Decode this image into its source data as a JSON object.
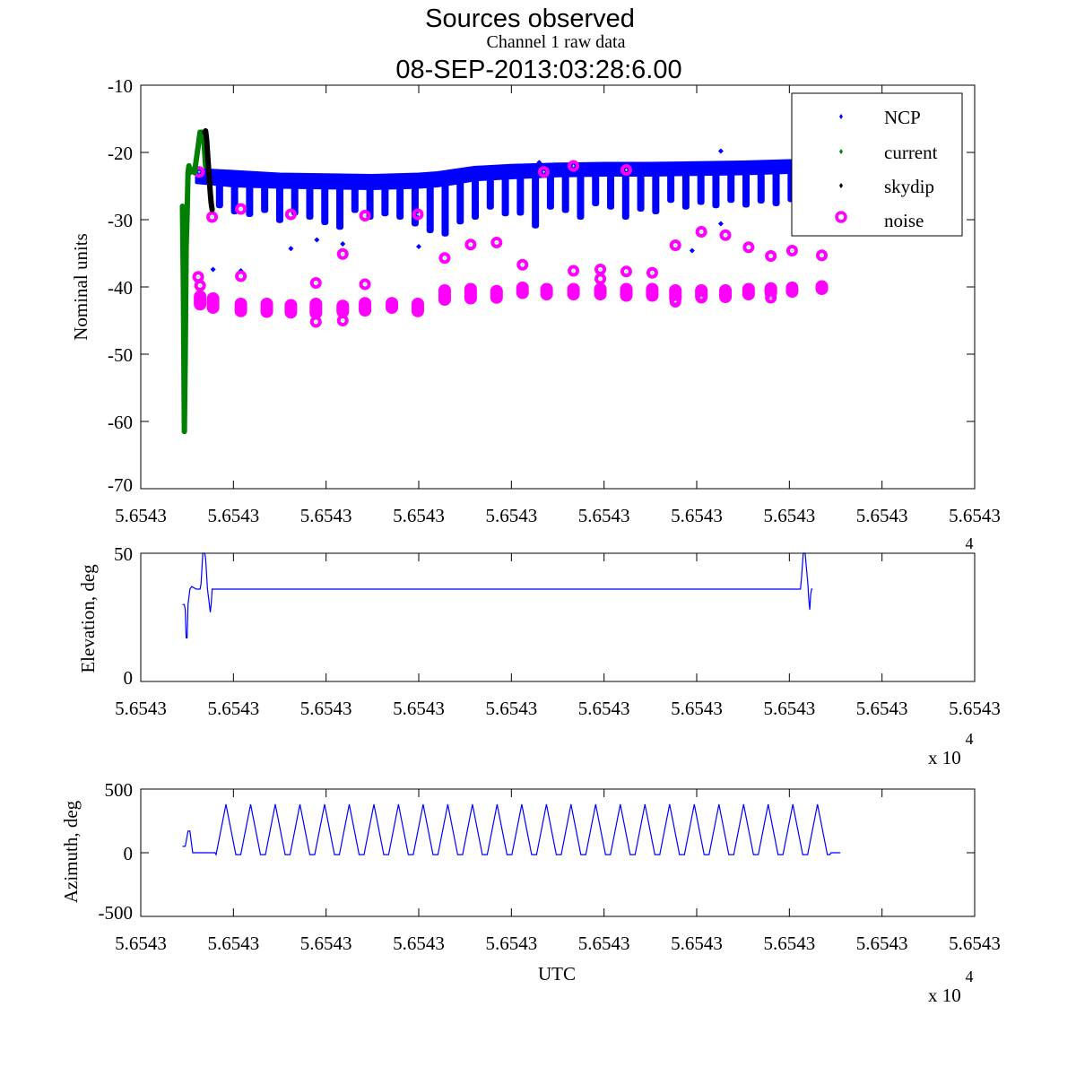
{
  "figure": {
    "title_line1": "Sources observed",
    "title_line2": "08-SEP-2013:03:28:6.00",
    "overlay_title": "Channel 1 raw data"
  },
  "chart_data": [
    {
      "type": "scatter",
      "name": "raw-data",
      "title": "Channel 1 raw data",
      "xlabel": "",
      "ylabel": "Nominal units",
      "ylim": [
        -70,
        -10
      ],
      "xlim": [
        0,
        9
      ],
      "xticks": [
        0,
        1,
        2,
        3,
        4,
        5,
        6,
        7,
        8,
        9
      ],
      "xtick_labels": [
        "5.6543",
        "5.6543",
        "5.6543",
        "5.6543",
        "5.6543",
        "5.6543",
        "5.6543",
        "5.6543",
        "5.6543",
        "5.6543"
      ],
      "yticks": [
        -10,
        -20,
        -30,
        -40,
        -50,
        -60,
        -70
      ],
      "ytick_labels": [
        "-10",
        "-20",
        "-30",
        "-40",
        "-50",
        "-60",
        "-70"
      ],
      "legend": {
        "position": "top-right",
        "entries": [
          {
            "label": "NCP",
            "color": "#0000ff",
            "marker": "dot"
          },
          {
            "label": "current",
            "color": "#008000",
            "marker": "dot"
          },
          {
            "label": "skydip",
            "color": "#000000",
            "marker": "dot"
          },
          {
            "label": "noise",
            "color": "#ff00ff",
            "marker": "circle"
          }
        ]
      },
      "series": [
        {
          "name": "current",
          "color": "#008000",
          "x": [
            0.45,
            0.46,
            0.47,
            0.48,
            0.49,
            0.5,
            0.51,
            0.52,
            0.53,
            0.56,
            0.58,
            0.6,
            0.62,
            0.64,
            0.66,
            0.68,
            0.7
          ],
          "y": [
            -28,
            -40,
            -61.5,
            -50,
            -34,
            -29,
            -23,
            -22,
            -23,
            -22.5,
            -23,
            -21,
            -19,
            -17,
            -17,
            -18,
            -22
          ]
        },
        {
          "name": "skydip",
          "color": "#000000",
          "x": [
            0.69,
            0.7,
            0.71,
            0.72,
            0.73,
            0.74,
            0.75,
            0.76,
            0.77
          ],
          "y": [
            -17,
            -16.8,
            -18,
            -20,
            -22,
            -24,
            -26,
            -27.5,
            -28.5
          ]
        },
        {
          "name": "NCP",
          "color": "#0000ff",
          "band": {
            "x": [
              0.6,
              1.0,
              1.5,
              2.0,
              2.5,
              3.0,
              3.2,
              3.4,
              3.6,
              4.0,
              4.5,
              5.0,
              5.5,
              6.0,
              6.5,
              7.0,
              7.2
            ],
            "y_top": [
              -22.5,
              -22.8,
              -23.2,
              -23.3,
              -23.4,
              -23.2,
              -23.0,
              -22.6,
              -22.2,
              -21.9,
              -21.7,
              -21.6,
              -21.6,
              -21.5,
              -21.4,
              -21.2,
              -21.2
            ],
            "y_bottom": [
              -24.5,
              -25,
              -25.2,
              -25.3,
              -25.4,
              -25.2,
              -25,
              -24.6,
              -24.1,
              -23.8,
              -23.5,
              -23.4,
              -23.4,
              -23.3,
              -23.2,
              -23,
              -23
            ]
          },
          "dip_spacing": 0.17,
          "dip_depths": [
            -28.3,
            -29.2,
            -29.6,
            -29,
            -30.5,
            -29.4,
            -30,
            -30.8,
            -31.5,
            -29,
            -30,
            -29.5,
            -30,
            -31,
            -32,
            -32.5,
            -30.7,
            -30,
            -28.5,
            -29.5,
            -29.4,
            -31.3,
            -28.5,
            -29,
            -30,
            -28,
            -28.5,
            -30,
            -28.8,
            -29.2,
            -27.5,
            -28.5,
            -27.8,
            -28.3,
            -27.5,
            -28.2,
            -27.6,
            -28,
            -27.4,
            -28.3,
            -27.5,
            -27.8,
            -27.6,
            -28,
            -27.6,
            -27.8,
            -27.5,
            -28.2,
            -27.7,
            -28.4
          ],
          "outliers": [
            {
              "x": 0.78,
              "y": -37.4
            },
            {
              "x": 1.08,
              "y": -37.6
            },
            {
              "x": 1.62,
              "y": -34.3
            },
            {
              "x": 1.9,
              "y": -33
            },
            {
              "x": 2.18,
              "y": -33.6
            },
            {
              "x": 3.0,
              "y": -34
            },
            {
              "x": 4.3,
              "y": -21.5
            },
            {
              "x": 5.95,
              "y": -34.6
            },
            {
              "x": 6.26,
              "y": -30.6
            },
            {
              "x": 7.12,
              "y": -26.6
            },
            {
              "x": 6.26,
              "y": -19.8
            }
          ]
        },
        {
          "name": "noise",
          "color": "#ff00ff",
          "points": [
            {
              "x": 0.63,
              "y": -22.9
            },
            {
              "x": 0.77,
              "y": -29.6
            },
            {
              "x": 1.08,
              "y": -28.4
            },
            {
              "x": 1.62,
              "y": -29.2
            },
            {
              "x": 2.42,
              "y": -29.4
            },
            {
              "x": 2.99,
              "y": -29.2
            },
            {
              "x": 4.35,
              "y": -22.9
            },
            {
              "x": 4.67,
              "y": -22
            },
            {
              "x": 5.24,
              "y": -22.6
            },
            {
              "x": 0.62,
              "y": -38.5
            },
            {
              "x": 0.64,
              "y": -39.8
            },
            {
              "x": 1.08,
              "y": -38.4
            },
            {
              "x": 1.89,
              "y": -39.4
            },
            {
              "x": 2.18,
              "y": -35.1
            },
            {
              "x": 2.42,
              "y": -39.6
            },
            {
              "x": 3.28,
              "y": -35.7
            },
            {
              "x": 3.56,
              "y": -33.7
            },
            {
              "x": 3.84,
              "y": -33.4
            },
            {
              "x": 4.12,
              "y": -36.7
            },
            {
              "x": 4.67,
              "y": -37.6
            },
            {
              "x": 4.96,
              "y": -37.4
            },
            {
              "x": 5.24,
              "y": -37.7
            },
            {
              "x": 5.52,
              "y": -37.9
            },
            {
              "x": 5.77,
              "y": -33.8
            },
            {
              "x": 6.05,
              "y": -31.8
            },
            {
              "x": 6.31,
              "y": -32.3
            },
            {
              "x": 6.56,
              "y": -34.1
            },
            {
              "x": 6.8,
              "y": -35.4
            },
            {
              "x": 7.03,
              "y": -34.6
            },
            {
              "x": 7.35,
              "y": -35.3
            },
            {
              "x": 1.89,
              "y": -45.2
            },
            {
              "x": 2.18,
              "y": -45
            },
            {
              "x": 4.96,
              "y": -38.8
            },
            {
              "x": 5.77,
              "y": -42.2
            },
            {
              "x": 6.05,
              "y": -41.6
            },
            {
              "x": 6.8,
              "y": -41.6
            }
          ],
          "clusters": [
            {
              "x": 0.64,
              "y_top": -40.5,
              "y_bottom": -43.5
            },
            {
              "x": 0.78,
              "y_top": -40.8,
              "y_bottom": -44
            },
            {
              "x": 1.08,
              "y_top": -41.6,
              "y_bottom": -44.5
            },
            {
              "x": 1.36,
              "y_top": -41.6,
              "y_bottom": -44.6
            },
            {
              "x": 1.62,
              "y_top": -41.8,
              "y_bottom": -44.7
            },
            {
              "x": 1.89,
              "y_top": -41.6,
              "y_bottom": -44.8
            },
            {
              "x": 2.18,
              "y_top": -41.9,
              "y_bottom": -44.6
            },
            {
              "x": 2.42,
              "y_top": -41.5,
              "y_bottom": -44.4
            },
            {
              "x": 2.71,
              "y_top": -41.5,
              "y_bottom": -44
            },
            {
              "x": 2.99,
              "y_top": -41.6,
              "y_bottom": -44.5
            },
            {
              "x": 3.28,
              "y_top": -39.6,
              "y_bottom": -42.8
            },
            {
              "x": 3.56,
              "y_top": -39.4,
              "y_bottom": -42.6
            },
            {
              "x": 3.84,
              "y_top": -39.7,
              "y_bottom": -42.5
            },
            {
              "x": 4.12,
              "y_top": -39.2,
              "y_bottom": -41.8
            },
            {
              "x": 4.38,
              "y_top": -39.4,
              "y_bottom": -42
            },
            {
              "x": 4.67,
              "y_top": -39.4,
              "y_bottom": -42
            },
            {
              "x": 4.96,
              "y_top": -39.4,
              "y_bottom": -42
            },
            {
              "x": 5.24,
              "y_top": -39.4,
              "y_bottom": -42.2
            },
            {
              "x": 5.52,
              "y_top": -39.4,
              "y_bottom": -42.2
            },
            {
              "x": 5.77,
              "y_top": -39.6,
              "y_bottom": -42.6
            },
            {
              "x": 6.05,
              "y_top": -39.6,
              "y_bottom": -42.4
            },
            {
              "x": 6.31,
              "y_top": -39.6,
              "y_bottom": -42.4
            },
            {
              "x": 6.56,
              "y_top": -39.4,
              "y_bottom": -42
            },
            {
              "x": 6.8,
              "y_top": -39.3,
              "y_bottom": -41.8
            },
            {
              "x": 7.03,
              "y_top": -39.2,
              "y_bottom": -41.6
            },
            {
              "x": 7.35,
              "y_top": -39,
              "y_bottom": -41.2
            }
          ]
        }
      ]
    },
    {
      "type": "line",
      "name": "elevation",
      "ylabel": "Elevation, deg",
      "xlabel": "",
      "ylim": [
        0,
        50
      ],
      "xlim": [
        0,
        9
      ],
      "yticks": [
        0,
        50
      ],
      "ytick_labels": [
        "0",
        "50"
      ],
      "xtick_labels": [
        "5.6543",
        "5.6543",
        "5.6543",
        "5.6543",
        "5.6543",
        "5.6543",
        "5.6543",
        "5.6543",
        "5.6543",
        "5.6543"
      ],
      "exponent_top": "4",
      "exponent_label": "x 10",
      "exponent_power": "4",
      "color": "#0000ff",
      "x": [
        0.45,
        0.47,
        0.48,
        0.49,
        0.5,
        0.51,
        0.53,
        0.55,
        0.6,
        0.64,
        0.65,
        0.67,
        0.69,
        0.7,
        0.72,
        0.74,
        0.75,
        0.76,
        0.77,
        0.78,
        0.8,
        1.5,
        3.0,
        5.0,
        7.0,
        7.12,
        7.13,
        7.15,
        7.17,
        7.18,
        7.2,
        7.21,
        7.22,
        7.23,
        7.24,
        7.25
      ],
      "y": [
        30,
        30,
        28,
        17,
        17,
        30,
        36,
        37,
        36,
        36,
        38,
        50,
        50,
        48,
        36,
        30,
        27,
        30,
        36,
        36,
        36,
        36,
        36,
        36,
        36,
        36,
        40,
        50,
        50,
        46,
        38,
        32,
        28,
        34,
        36,
        36
      ]
    },
    {
      "type": "line",
      "name": "azimuth",
      "ylabel": "Azimuth, deg",
      "xlabel": "UTC",
      "ylim": [
        -500,
        500
      ],
      "xlim": [
        0,
        9
      ],
      "yticks": [
        -500,
        0,
        500
      ],
      "ytick_labels": [
        "-500",
        "0",
        "500"
      ],
      "xtick_labels": [
        "5.6543",
        "5.6543",
        "5.6543",
        "5.6543",
        "5.6543",
        "5.6543",
        "5.6543",
        "5.6543",
        "5.6543",
        "5.6543"
      ],
      "exponent_label": "x 10",
      "exponent_power": "4",
      "color": "#0000ff",
      "sweep_start": 0.8,
      "sweep_end": 7.45,
      "sweep_count": 25,
      "sweep_max": 380,
      "sweep_min": -15,
      "pre_x": [
        0.45,
        0.48,
        0.51,
        0.53,
        0.56,
        0.6,
        0.8
      ],
      "pre_y": [
        50,
        50,
        170,
        170,
        0,
        0,
        0
      ],
      "post_x": [
        7.45,
        7.55
      ],
      "post_y": [
        0,
        0
      ]
    }
  ]
}
